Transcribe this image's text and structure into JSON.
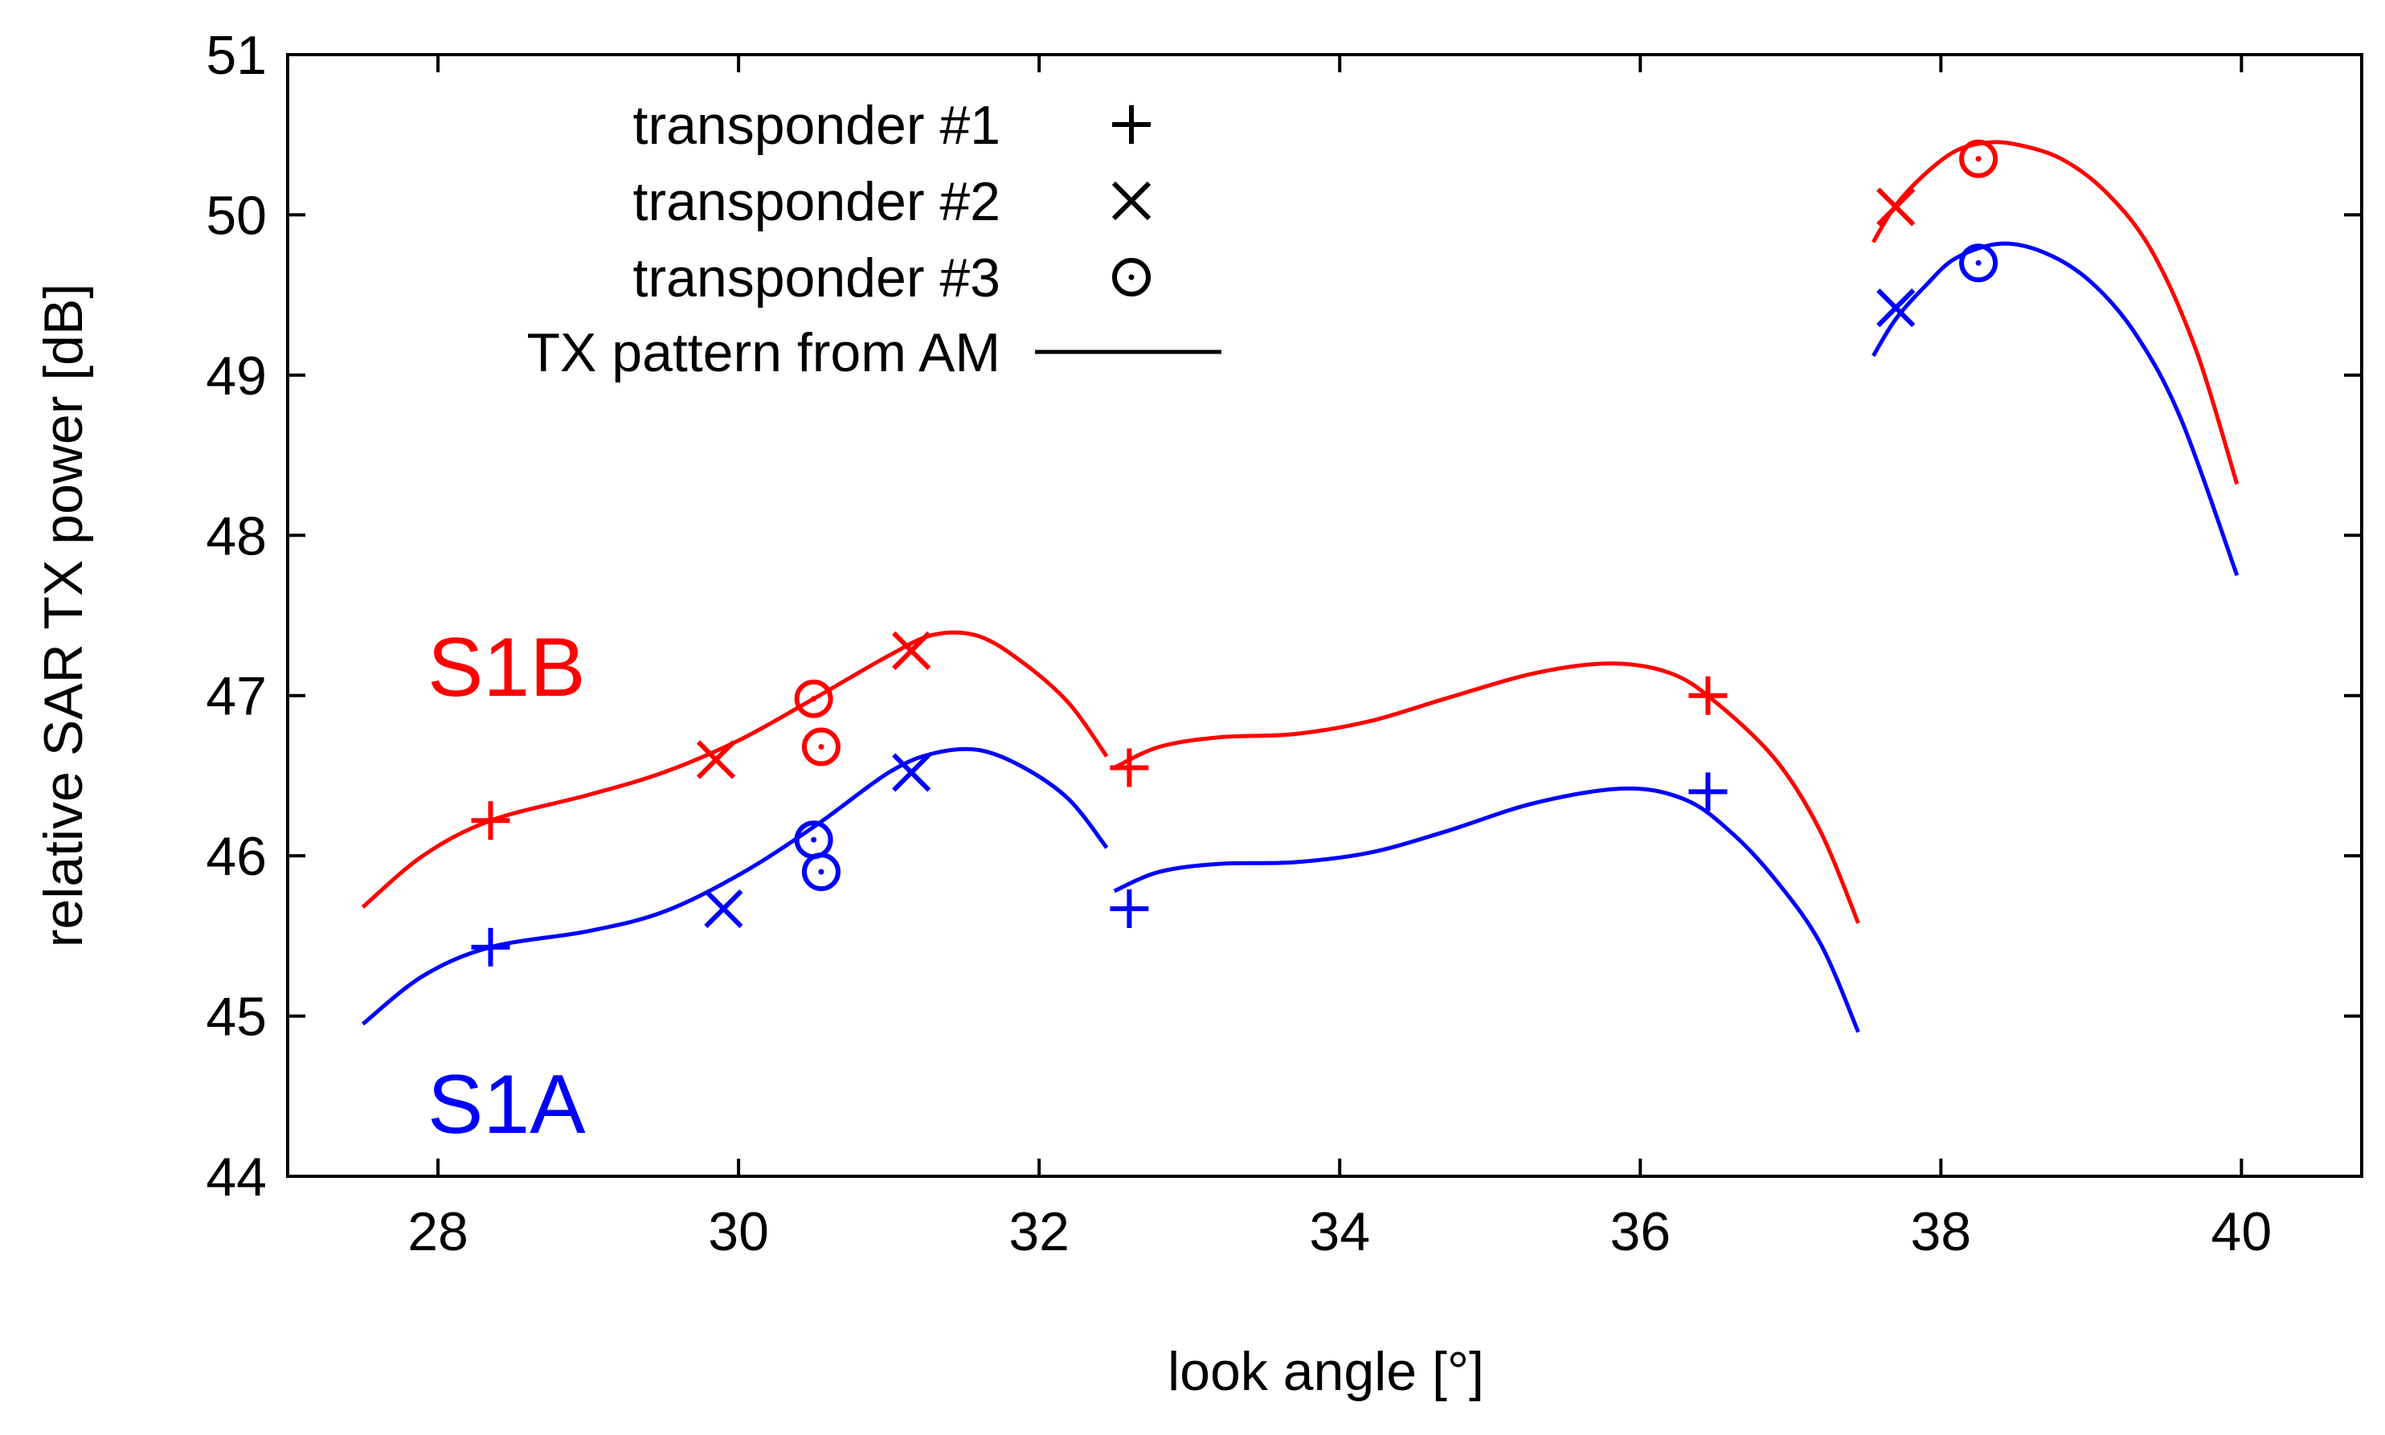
{
  "chart_data": {
    "type": "line",
    "xlabel": "look angle [°]",
    "ylabel": "relative SAR TX power [dB]",
    "xlim": [
      27,
      40.8
    ],
    "ylim": [
      44,
      51
    ],
    "xticks": [
      "28",
      "30",
      "32",
      "34",
      "36",
      "38",
      "40"
    ],
    "yticks": [
      "44",
      "45",
      "46",
      "47",
      "48",
      "49",
      "50",
      "51"
    ],
    "legend": {
      "position": "top-left",
      "entries": [
        {
          "label": "transponder #1",
          "marker": "plus"
        },
        {
          "label": "transponder #2",
          "marker": "cross"
        },
        {
          "label": "transponder #3",
          "marker": "dotted-circle"
        },
        {
          "label": "TX pattern from AM",
          "marker": "line"
        }
      ]
    },
    "series": [
      {
        "name": "S1B",
        "label": "S1B",
        "color": "#ff0000",
        "pattern_segments": [
          [
            [
              27.5,
              45.68
            ],
            [
              27.9,
              46.0
            ],
            [
              28.35,
              46.22
            ],
            [
              29.0,
              46.38
            ],
            [
              29.5,
              46.52
            ],
            [
              30.0,
              46.72
            ],
            [
              30.5,
              46.98
            ],
            [
              31.0,
              47.25
            ],
            [
              31.3,
              47.38
            ],
            [
              31.6,
              47.37
            ],
            [
              31.9,
              47.2
            ],
            [
              32.2,
              46.95
            ],
            [
              32.45,
              46.62
            ]
          ],
          [
            [
              32.5,
              46.55
            ],
            [
              32.8,
              46.68
            ],
            [
              33.2,
              46.74
            ],
            [
              33.7,
              46.76
            ],
            [
              34.2,
              46.84
            ],
            [
              34.7,
              46.98
            ],
            [
              35.3,
              47.14
            ],
            [
              35.8,
              47.2
            ],
            [
              36.2,
              47.14
            ],
            [
              36.5,
              46.96
            ],
            [
              36.9,
              46.6
            ],
            [
              37.2,
              46.15
            ],
            [
              37.45,
              45.58
            ]
          ],
          [
            [
              37.55,
              49.83
            ],
            [
              37.7,
              50.06
            ],
            [
              37.9,
              50.26
            ],
            [
              38.1,
              50.4
            ],
            [
              38.3,
              50.45
            ],
            [
              38.5,
              50.44
            ],
            [
              38.8,
              50.35
            ],
            [
              39.1,
              50.14
            ],
            [
              39.4,
              49.78
            ],
            [
              39.7,
              49.15
            ],
            [
              39.97,
              48.32
            ]
          ]
        ],
        "transponder1": [
          [
            28.35,
            46.22
          ],
          [
            32.6,
            46.55
          ],
          [
            36.45,
            47.0
          ]
        ],
        "transponder2": [
          [
            29.85,
            46.6
          ],
          [
            31.15,
            47.28
          ],
          [
            37.7,
            50.05
          ]
        ],
        "transponder3": [
          [
            30.5,
            46.98
          ],
          [
            30.55,
            46.68
          ],
          [
            38.25,
            50.35
          ]
        ]
      },
      {
        "name": "S1A",
        "label": "S1A",
        "color": "#0000ff",
        "pattern_segments": [
          [
            [
              27.5,
              44.95
            ],
            [
              27.9,
              45.25
            ],
            [
              28.35,
              45.43
            ],
            [
              29.0,
              45.53
            ],
            [
              29.5,
              45.65
            ],
            [
              30.0,
              45.88
            ],
            [
              30.5,
              46.18
            ],
            [
              31.0,
              46.52
            ],
            [
              31.3,
              46.64
            ],
            [
              31.6,
              46.66
            ],
            [
              31.9,
              46.55
            ],
            [
              32.2,
              46.35
            ],
            [
              32.45,
              46.05
            ]
          ],
          [
            [
              32.5,
              45.78
            ],
            [
              32.8,
              45.9
            ],
            [
              33.2,
              45.95
            ],
            [
              33.7,
              45.96
            ],
            [
              34.2,
              46.02
            ],
            [
              34.7,
              46.15
            ],
            [
              35.3,
              46.33
            ],
            [
              35.9,
              46.42
            ],
            [
              36.3,
              46.35
            ],
            [
              36.6,
              46.15
            ],
            [
              36.9,
              45.85
            ],
            [
              37.2,
              45.45
            ],
            [
              37.45,
              44.9
            ]
          ],
          [
            [
              37.55,
              49.12
            ],
            [
              37.7,
              49.35
            ],
            [
              37.9,
              49.56
            ],
            [
              38.1,
              49.73
            ],
            [
              38.4,
              49.82
            ],
            [
              38.7,
              49.76
            ],
            [
              39.0,
              49.58
            ],
            [
              39.3,
              49.25
            ],
            [
              39.6,
              48.72
            ],
            [
              39.97,
              47.75
            ]
          ]
        ],
        "transponder1": [
          [
            28.35,
            45.43
          ],
          [
            32.6,
            45.67
          ],
          [
            36.45,
            46.4
          ]
        ],
        "transponder2": [
          [
            29.9,
            45.67
          ],
          [
            31.15,
            46.52
          ],
          [
            37.7,
            49.42
          ]
        ],
        "transponder3": [
          [
            30.5,
            46.1
          ],
          [
            30.55,
            45.9
          ],
          [
            38.25,
            49.7
          ]
        ]
      }
    ]
  }
}
